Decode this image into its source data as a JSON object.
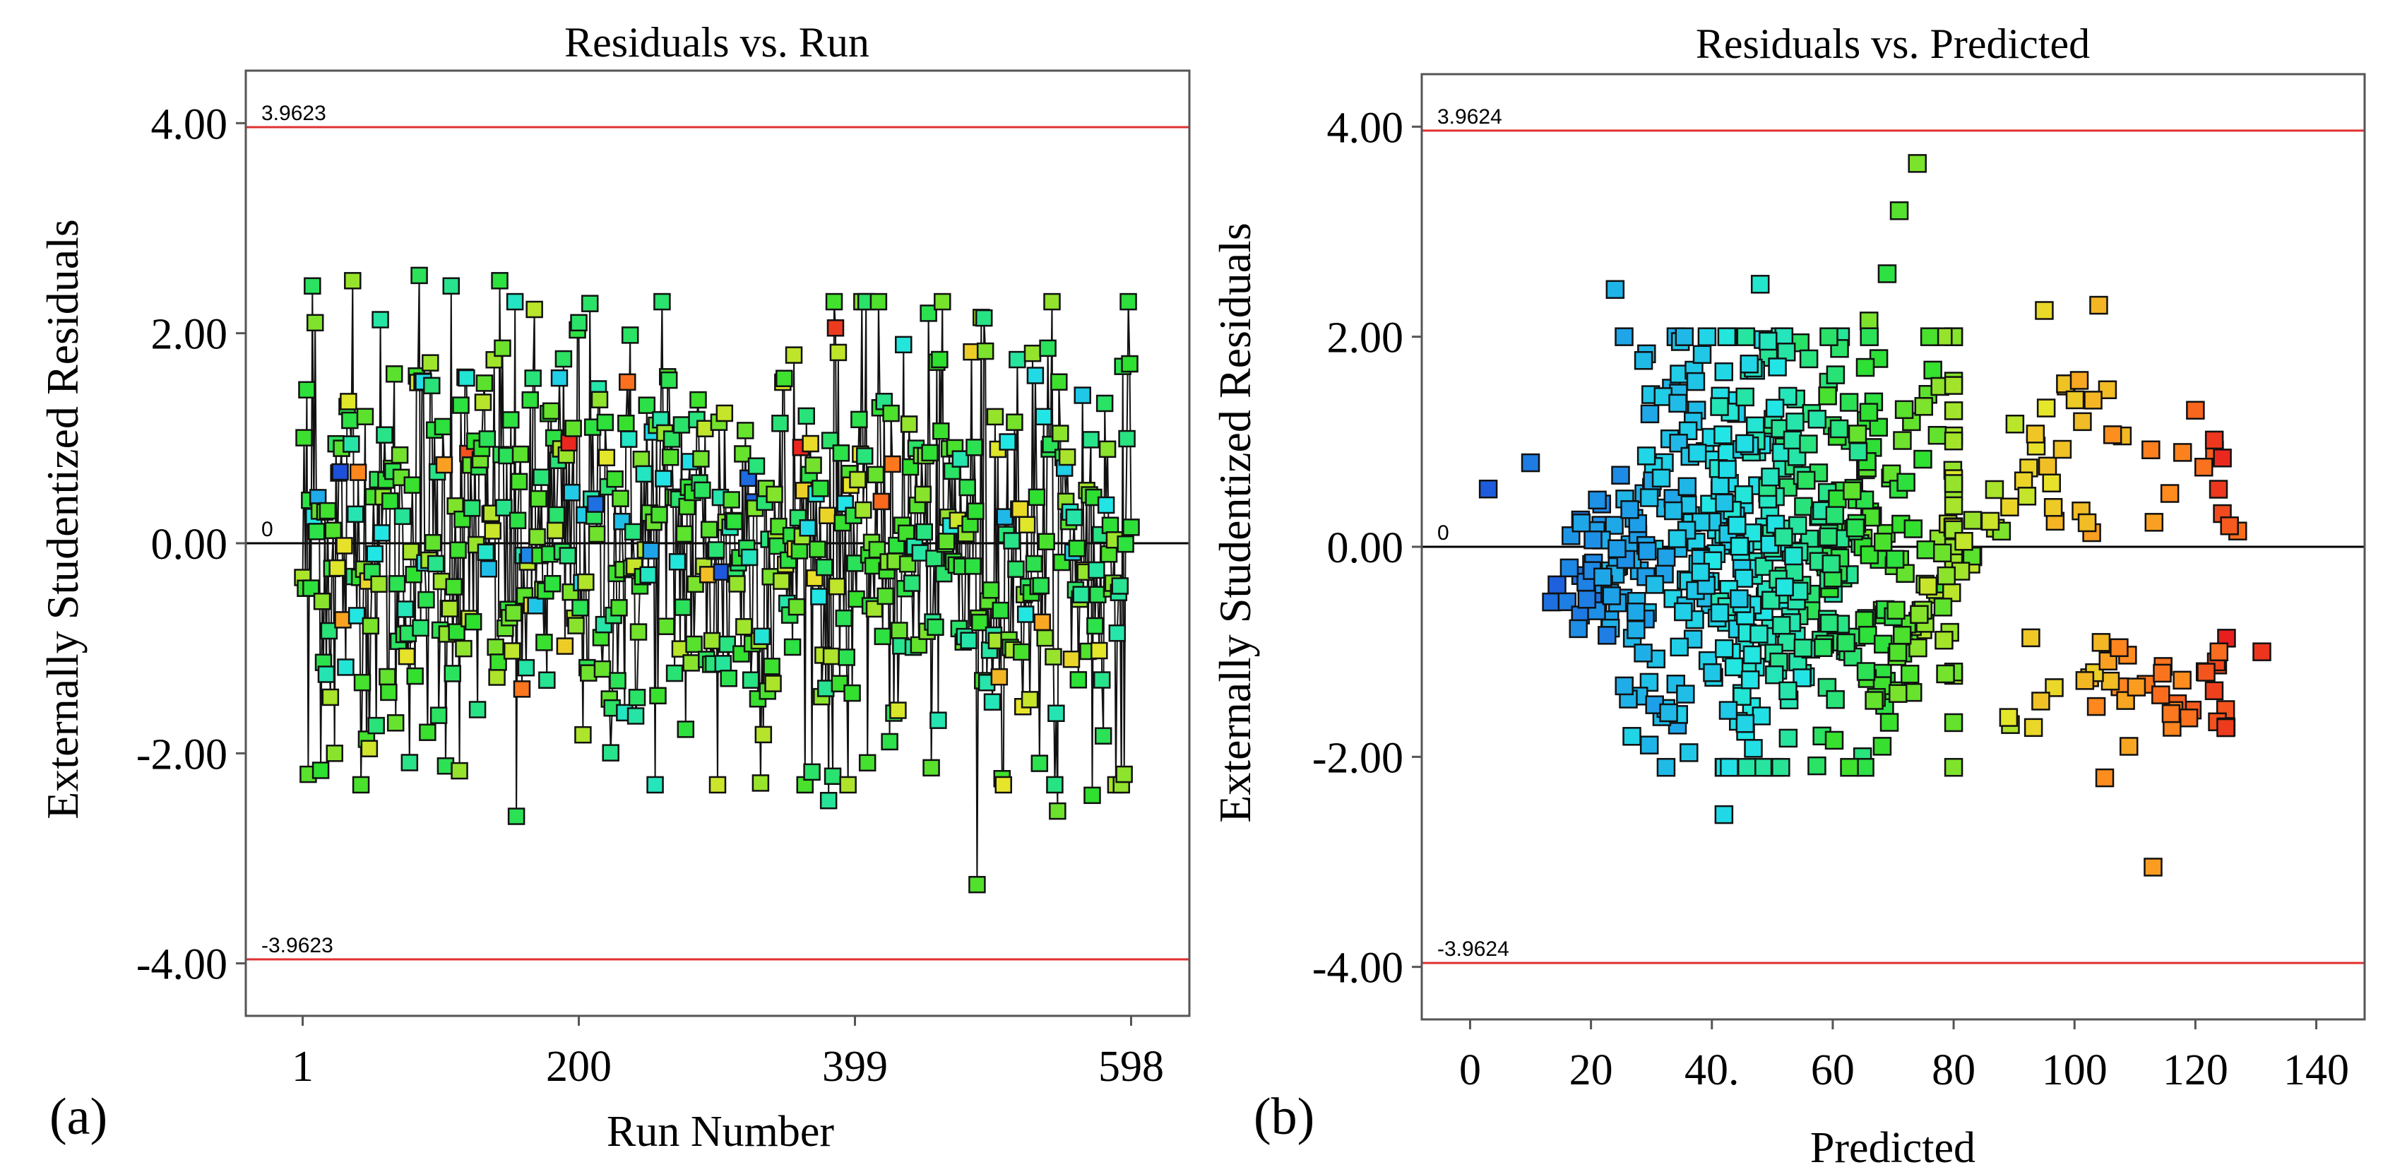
{
  "chart_data": [
    {
      "type": "scatter",
      "panel_label": "(a)",
      "title": "Residuals vs. Run",
      "xlabel": "Run Number",
      "ylabel": "Externally Studentized Residuals",
      "xlim": [
        -40,
        640
      ],
      "ylim": [
        -4.5,
        4.5
      ],
      "xticks": [
        1,
        200,
        399,
        598
      ],
      "yticks": [
        -4.0,
        -2.0,
        0.0,
        2.0,
        4.0
      ],
      "ytick_labels": [
        "-4.00",
        "-2.00",
        "0.00",
        "2.00",
        "4.00"
      ],
      "limit_lines": [
        {
          "value": 3.9623,
          "label": "3.9623",
          "color": "#e03030"
        },
        {
          "value": -3.9623,
          "label": "-3.9623",
          "color": "#e03030"
        }
      ],
      "zero_line": {
        "value": 0,
        "label": "0",
        "color": "#000000"
      },
      "connected": true,
      "marker": "square",
      "color_scale": [
        "#1e3cd8",
        "#1e9be8",
        "#22e6e6",
        "#2ee02e",
        "#e6e62a",
        "#ff8a1e",
        "#e81e1e"
      ],
      "n_runs": 598,
      "notable_points": [
        {
          "x": 5,
          "y": -2.2
        },
        {
          "x": 8,
          "y": 2.45
        },
        {
          "x": 24,
          "y": -2.0
        },
        {
          "x": 37,
          "y": 2.5
        },
        {
          "x": 85,
          "y": 2.55
        },
        {
          "x": 108,
          "y": 2.45
        },
        {
          "x": 143,
          "y": 2.5
        },
        {
          "x": 155,
          "y": -2.6
        },
        {
          "x": 200,
          "y": 2.1
        },
        {
          "x": 260,
          "y": 2.3
        },
        {
          "x": 300,
          "y": -2.3
        },
        {
          "x": 380,
          "y": -2.45
        },
        {
          "x": 385,
          "y": 2.05
        },
        {
          "x": 420,
          "y": 1.35
        },
        {
          "x": 490,
          "y": 2.15
        },
        {
          "x": 545,
          "y": -2.55
        },
        {
          "x": 487,
          "y": -3.25
        },
        {
          "x": 570,
          "y": -2.4
        },
        {
          "x": 593,
          "y": -2.2
        },
        {
          "x": 10,
          "y": 2.1
        }
      ]
    },
    {
      "type": "scatter",
      "panel_label": "(b)",
      "title": "Residuals vs. Predicted",
      "xlabel": "Predicted",
      "ylabel": "Externally Studentized Residuals",
      "xlim": [
        -8,
        148
      ],
      "ylim": [
        -4.5,
        4.5
      ],
      "xticks": [
        0,
        20,
        40,
        60,
        80,
        100,
        120,
        140
      ],
      "xtick_labels": [
        "0",
        "20",
        "40.",
        "60",
        "80",
        "100",
        "120",
        "140"
      ],
      "yticks": [
        -4.0,
        -2.0,
        0.0,
        2.0,
        4.0
      ],
      "ytick_labels": [
        "-4.00",
        "-2.00",
        "0.00",
        "2.00",
        "4.00"
      ],
      "limit_lines": [
        {
          "value": 3.9624,
          "label": "3.9624",
          "color": "#e03030"
        },
        {
          "value": -3.9624,
          "label": "-3.9624",
          "color": "#e03030"
        }
      ],
      "zero_line": {
        "value": 0,
        "label": "0",
        "color": "#000000"
      },
      "connected": false,
      "marker": "square",
      "color_scale": [
        "#1e3cd8",
        "#1e9be8",
        "#22e6e6",
        "#2ee02e",
        "#e6e62a",
        "#ff8a1e",
        "#e81e1e"
      ],
      "notable_points": [
        {
          "x": 3,
          "y": 0.55
        },
        {
          "x": 10,
          "y": 0.8
        },
        {
          "x": 24,
          "y": 2.45
        },
        {
          "x": 42,
          "y": -2.55
        },
        {
          "x": 48,
          "y": 2.5
        },
        {
          "x": 66,
          "y": 2.15
        },
        {
          "x": 69,
          "y": 2.6
        },
        {
          "x": 71,
          "y": 3.2
        },
        {
          "x": 74,
          "y": 3.65
        },
        {
          "x": 95,
          "y": 2.25
        },
        {
          "x": 104,
          "y": 2.3
        },
        {
          "x": 105,
          "y": -2.2
        },
        {
          "x": 113,
          "y": -3.05
        },
        {
          "x": 120,
          "y": 1.3
        },
        {
          "x": 127,
          "y": 0.15
        },
        {
          "x": 131,
          "y": -1.0
        },
        {
          "x": 125,
          "y": -1.55
        },
        {
          "x": 109,
          "y": -1.9
        }
      ]
    }
  ]
}
